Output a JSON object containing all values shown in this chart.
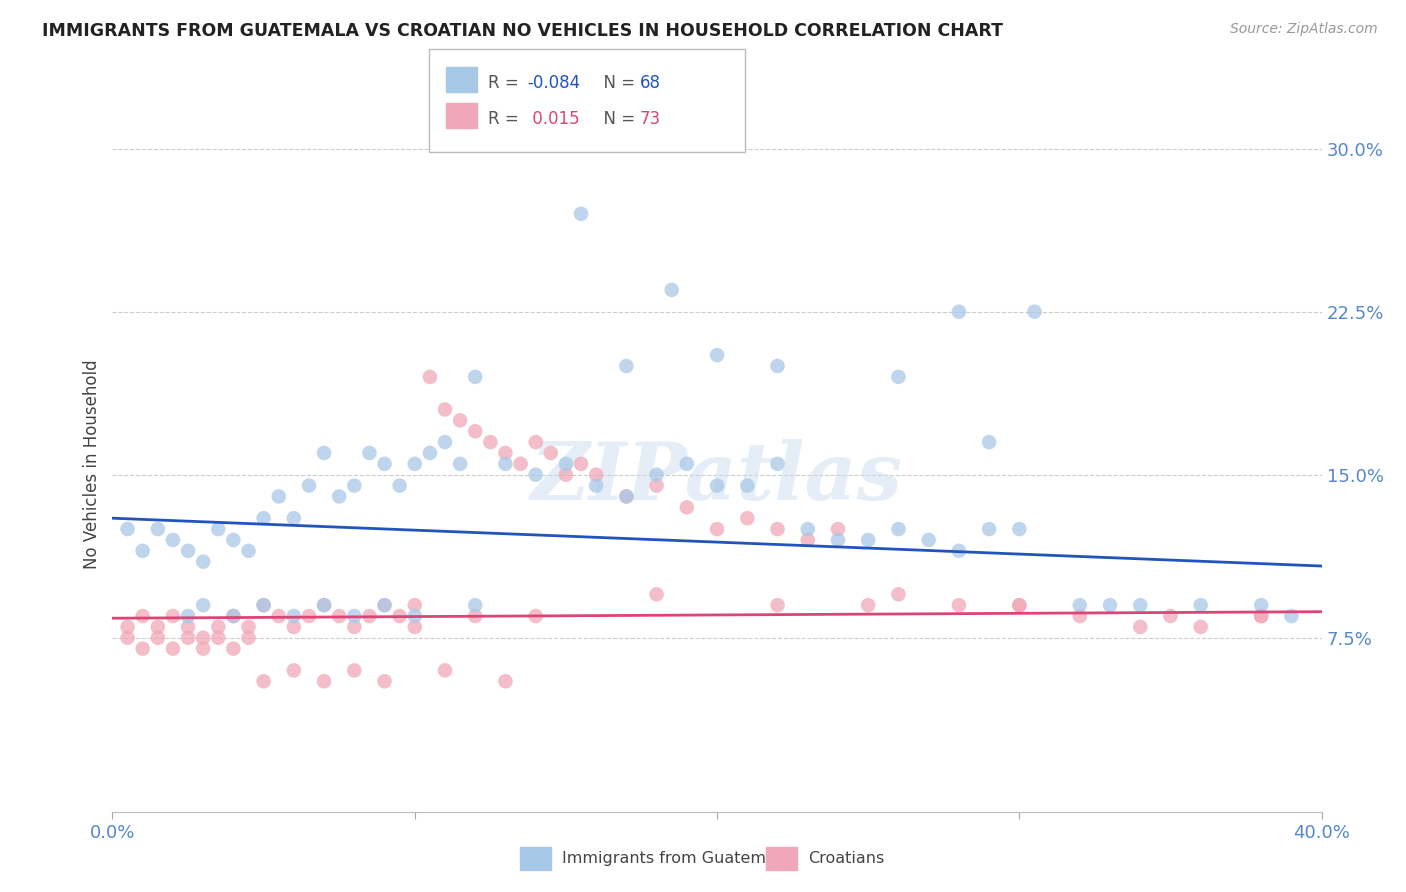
{
  "title": "IMMIGRANTS FROM GUATEMALA VS CROATIAN NO VEHICLES IN HOUSEHOLD CORRELATION CHART",
  "source": "Source: ZipAtlas.com",
  "ylabel": "No Vehicles in Household",
  "ytick_labels": [
    "7.5%",
    "15.0%",
    "22.5%",
    "30.0%"
  ],
  "ytick_values": [
    0.075,
    0.15,
    0.225,
    0.3
  ],
  "xlim": [
    0.0,
    0.4
  ],
  "ylim": [
    -0.005,
    0.315
  ],
  "blue_color": "#a8c8e8",
  "pink_color": "#f0a8b8",
  "blue_line_color": "#2255bb",
  "pink_line_color": "#dd4477",
  "watermark": "ZIPatlas",
  "grid_color": "#cccccc",
  "blue_line_y_start": 0.13,
  "blue_line_y_end": 0.108,
  "pink_line_y_start": 0.084,
  "pink_line_y_end": 0.087,
  "blue_scatter_x": [
    0.005,
    0.01,
    0.015,
    0.02,
    0.025,
    0.03,
    0.035,
    0.04,
    0.045,
    0.05,
    0.055,
    0.06,
    0.065,
    0.07,
    0.075,
    0.08,
    0.085,
    0.09,
    0.095,
    0.1,
    0.105,
    0.11,
    0.115,
    0.12,
    0.13,
    0.14,
    0.15,
    0.16,
    0.17,
    0.18,
    0.19,
    0.2,
    0.21,
    0.22,
    0.23,
    0.24,
    0.25,
    0.26,
    0.27,
    0.28,
    0.29,
    0.3,
    0.32,
    0.34,
    0.36,
    0.38,
    0.39,
    0.17,
    0.2,
    0.22,
    0.155,
    0.185,
    0.26,
    0.28,
    0.305,
    0.29,
    0.33,
    0.025,
    0.03,
    0.04,
    0.05,
    0.06,
    0.07,
    0.08,
    0.09,
    0.1,
    0.12
  ],
  "blue_scatter_y": [
    0.125,
    0.115,
    0.125,
    0.12,
    0.115,
    0.11,
    0.125,
    0.12,
    0.115,
    0.13,
    0.14,
    0.13,
    0.145,
    0.16,
    0.14,
    0.145,
    0.16,
    0.155,
    0.145,
    0.155,
    0.16,
    0.165,
    0.155,
    0.195,
    0.155,
    0.15,
    0.155,
    0.145,
    0.14,
    0.15,
    0.155,
    0.145,
    0.145,
    0.155,
    0.125,
    0.12,
    0.12,
    0.125,
    0.12,
    0.115,
    0.125,
    0.125,
    0.09,
    0.09,
    0.09,
    0.09,
    0.085,
    0.2,
    0.205,
    0.2,
    0.27,
    0.235,
    0.195,
    0.225,
    0.225,
    0.165,
    0.09,
    0.085,
    0.09,
    0.085,
    0.09,
    0.085,
    0.09,
    0.085,
    0.09,
    0.085,
    0.09
  ],
  "pink_scatter_x": [
    0.005,
    0.01,
    0.015,
    0.02,
    0.025,
    0.03,
    0.035,
    0.04,
    0.045,
    0.05,
    0.055,
    0.06,
    0.065,
    0.07,
    0.075,
    0.08,
    0.085,
    0.09,
    0.095,
    0.1,
    0.105,
    0.11,
    0.115,
    0.12,
    0.125,
    0.13,
    0.135,
    0.14,
    0.145,
    0.15,
    0.155,
    0.16,
    0.17,
    0.18,
    0.19,
    0.2,
    0.21,
    0.22,
    0.23,
    0.24,
    0.25,
    0.26,
    0.28,
    0.3,
    0.32,
    0.34,
    0.36,
    0.38,
    0.005,
    0.01,
    0.015,
    0.02,
    0.025,
    0.03,
    0.035,
    0.04,
    0.045,
    0.1,
    0.12,
    0.14,
    0.18,
    0.22,
    0.3,
    0.35,
    0.38,
    0.05,
    0.06,
    0.07,
    0.08,
    0.09,
    0.11,
    0.13
  ],
  "pink_scatter_y": [
    0.08,
    0.085,
    0.08,
    0.085,
    0.08,
    0.075,
    0.08,
    0.085,
    0.08,
    0.09,
    0.085,
    0.08,
    0.085,
    0.09,
    0.085,
    0.08,
    0.085,
    0.09,
    0.085,
    0.08,
    0.195,
    0.18,
    0.175,
    0.17,
    0.165,
    0.16,
    0.155,
    0.165,
    0.16,
    0.15,
    0.155,
    0.15,
    0.14,
    0.145,
    0.135,
    0.125,
    0.13,
    0.125,
    0.12,
    0.125,
    0.09,
    0.095,
    0.09,
    0.09,
    0.085,
    0.08,
    0.08,
    0.085,
    0.075,
    0.07,
    0.075,
    0.07,
    0.075,
    0.07,
    0.075,
    0.07,
    0.075,
    0.09,
    0.085,
    0.085,
    0.095,
    0.09,
    0.09,
    0.085,
    0.085,
    0.055,
    0.06,
    0.055,
    0.06,
    0.055,
    0.06,
    0.055
  ]
}
